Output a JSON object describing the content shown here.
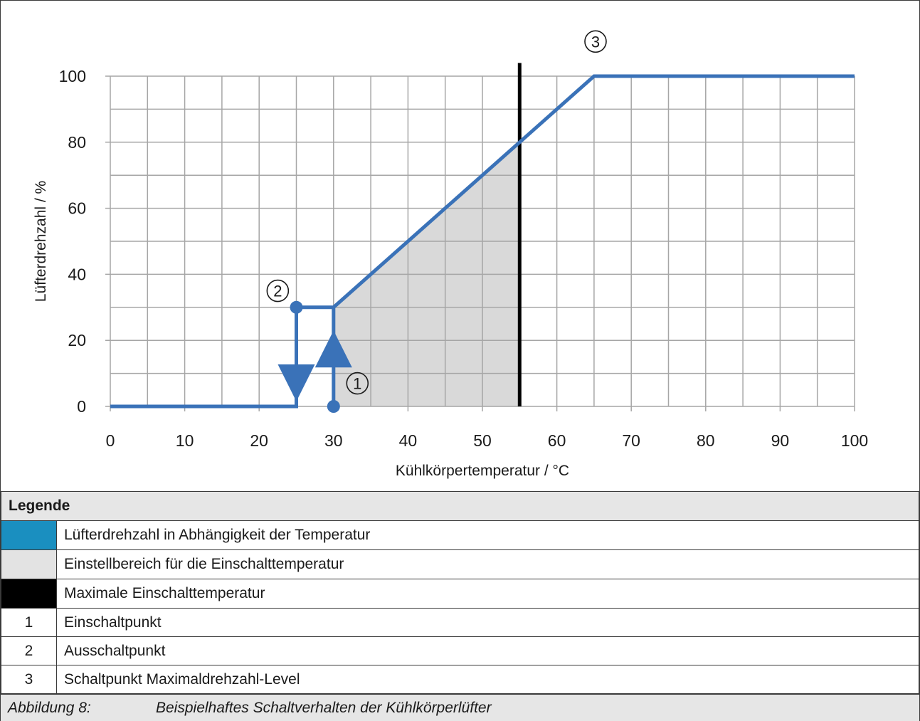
{
  "chart_data": {
    "type": "line",
    "xlabel": "Kühlkörpertemperatur / °C",
    "ylabel": "Lüfterdrehzahl / %",
    "xlim": [
      0,
      100
    ],
    "ylim": [
      0,
      100
    ],
    "x_ticks": [
      0,
      10,
      20,
      30,
      40,
      50,
      60,
      70,
      80,
      90,
      100
    ],
    "y_ticks": [
      0,
      20,
      40,
      60,
      80,
      100
    ],
    "grid": true,
    "series": [
      {
        "color": "#3a72b8",
        "points": [
          [
            0,
            0
          ],
          [
            25,
            0
          ],
          [
            25,
            30
          ],
          [
            30,
            30
          ],
          [
            30,
            0
          ],
          [
            30,
            30
          ],
          [
            65,
            100
          ],
          [
            100,
            100
          ]
        ]
      }
    ],
    "shaded_region": {
      "color": "#d9d9d9",
      "points": [
        [
          30,
          0
        ],
        [
          30,
          30
        ],
        [
          55,
          80
        ],
        [
          55,
          0
        ]
      ]
    },
    "vertical_line": {
      "x": 55,
      "y_top": 104,
      "color": "#000000"
    },
    "arrows": [
      {
        "x": 25,
        "direction": "down",
        "y_tip": 1.5
      },
      {
        "x": 30,
        "direction": "up",
        "y_tip": 23
      }
    ],
    "points": [
      {
        "x": 30,
        "y": 0,
        "label": "1"
      },
      {
        "x": 25,
        "y": 30,
        "label": "2"
      },
      {
        "x": 65,
        "y": 100,
        "label": "3"
      }
    ],
    "marker_labels": [
      {
        "text": "①",
        "x": 33.2,
        "y": 7
      },
      {
        "text": "②",
        "x": 22.5,
        "y": 35
      },
      {
        "text": "③",
        "x": 65.2,
        "y": 110.5
      }
    ]
  },
  "legend": {
    "title": "Legende",
    "rows": [
      {
        "key": "",
        "swatch": "#1a8fc0",
        "text": "Lüfterdrehzahl in Abhängigkeit der Temperatur"
      },
      {
        "key": "",
        "swatch": "#e3e3e3",
        "text": "Einstellbereich für die Einschalttemperatur"
      },
      {
        "key": "",
        "swatch": "#000000",
        "text": "Maximale Einschalttemperatur"
      },
      {
        "key": "1",
        "swatch": "",
        "text": "Einschaltpunkt"
      },
      {
        "key": "2",
        "swatch": "",
        "text": "Ausschaltpunkt"
      },
      {
        "key": "3",
        "swatch": "",
        "text": "Schaltpunkt Maximaldrehzahl-Level"
      }
    ]
  },
  "caption": {
    "number": "Abbildung 8:",
    "text": "Beispielhaftes Schaltverhalten der Kühlkörperlüfter"
  }
}
